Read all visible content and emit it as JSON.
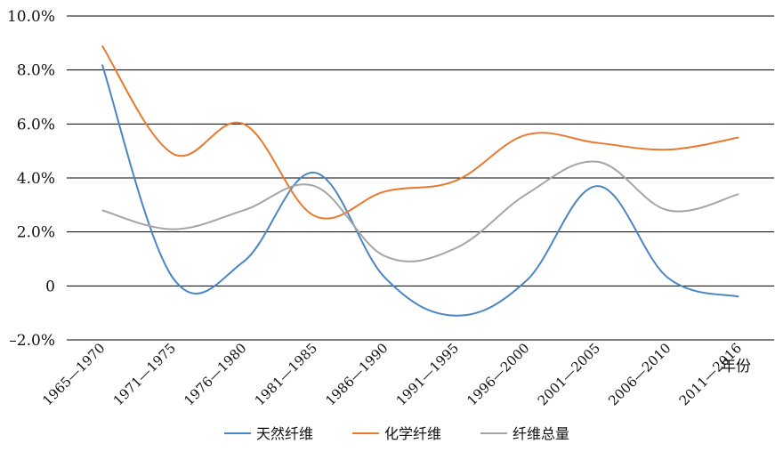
{
  "chart_data": {
    "type": "line",
    "title": "",
    "xlabel": "",
    "ylabel": "",
    "x_unit_label": "年份",
    "categories": [
      "1965—1970",
      "1971—1975",
      "1976—1980",
      "1981—1985",
      "1986—1990",
      "1991—1995",
      "1996—2000",
      "2001—2005",
      "2006—2010",
      "2011—2016"
    ],
    "y_ticks": [
      "10.0%",
      "8.0%",
      "6.0%",
      "4.0%",
      "2.0%",
      "0",
      "–2.0%"
    ],
    "ylim": [
      -2.0,
      10.0
    ],
    "grid": true,
    "legend_position": "bottom",
    "series": [
      {
        "name": "天然纤维",
        "color": "#4a86c5",
        "values": [
          8.2,
          0.3,
          0.9,
          4.2,
          0.3,
          -1.1,
          0.2,
          3.7,
          0.3,
          -0.4
        ]
      },
      {
        "name": "化学纤维",
        "color": "#e8792f",
        "values": [
          8.9,
          4.9,
          6.0,
          2.6,
          3.5,
          3.9,
          5.6,
          5.3,
          5.05,
          5.5
        ]
      },
      {
        "name": "纤维总量",
        "color": "#a5a5a5",
        "values": [
          2.8,
          2.1,
          2.8,
          3.7,
          1.1,
          1.4,
          3.4,
          4.6,
          2.8,
          3.4
        ]
      }
    ]
  }
}
